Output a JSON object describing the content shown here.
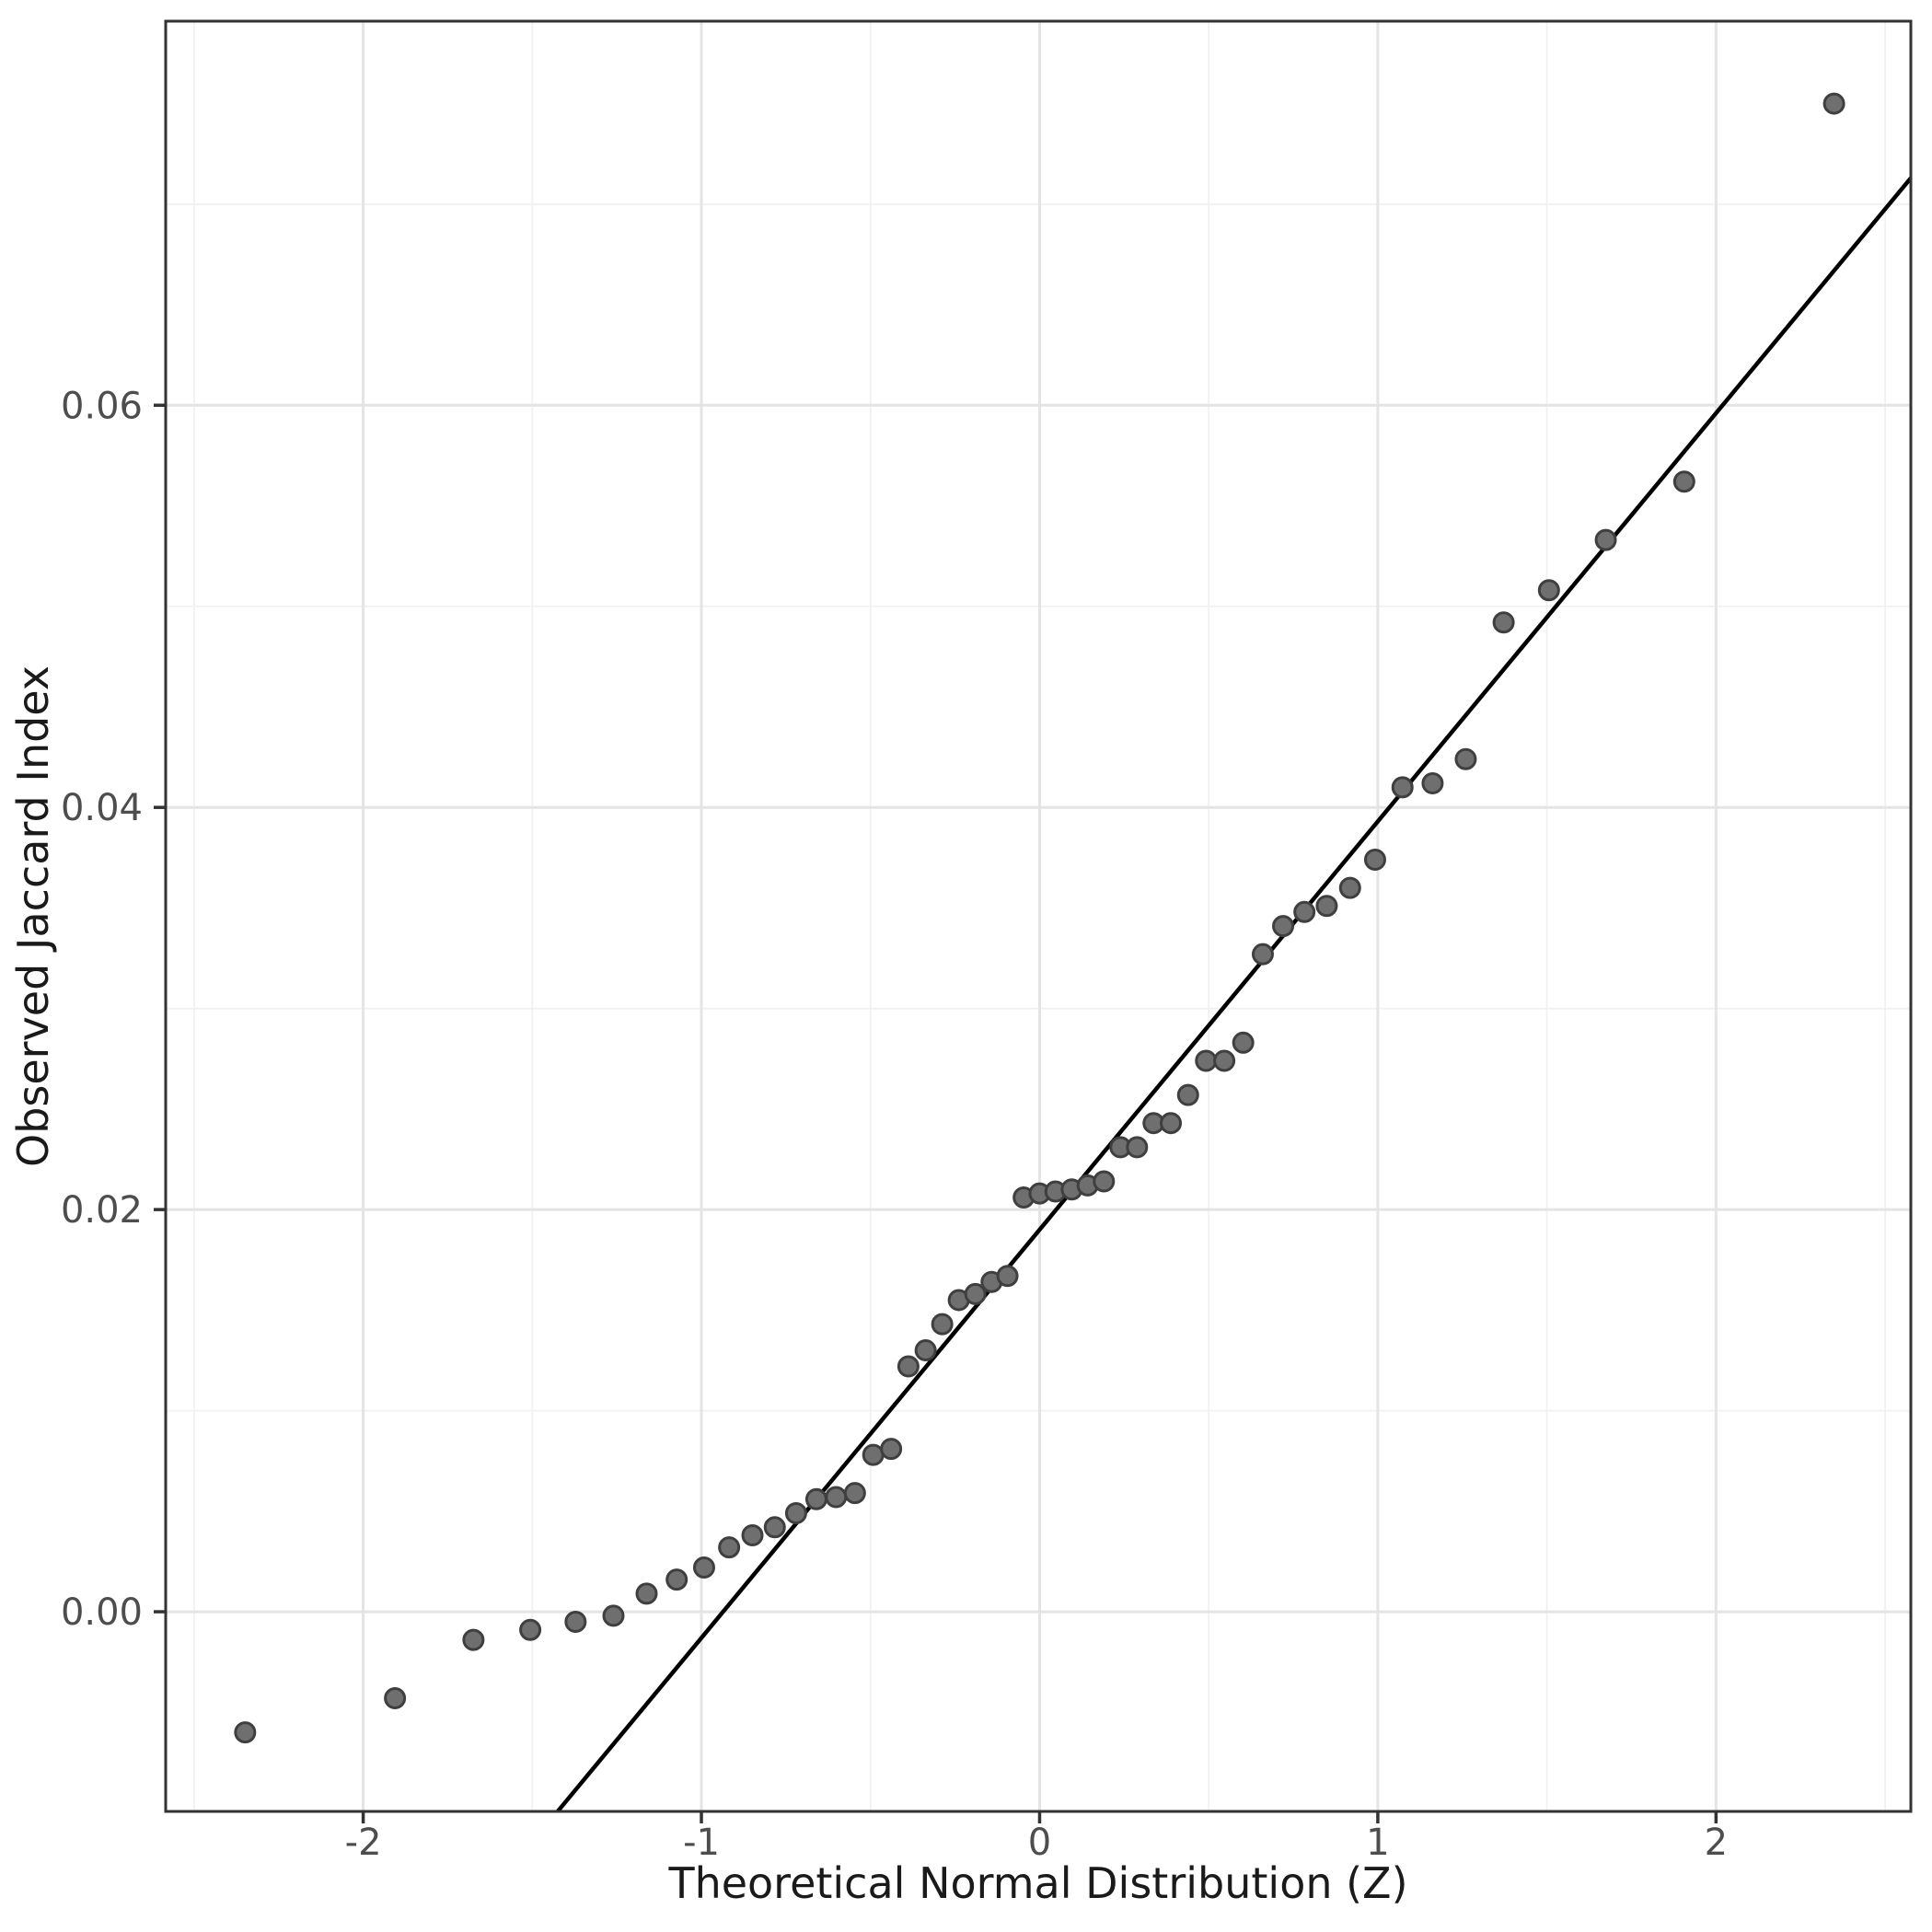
{
  "chart_data": {
    "type": "scatter",
    "title": "",
    "xlabel": "Theoretical Normal Distribution (Z)",
    "ylabel": "Observed Jaccard Index",
    "xlim": [
      -2.584,
      2.576
    ],
    "ylim": [
      -0.00993,
      0.0791
    ],
    "x_ticks": [
      -2,
      -1,
      0,
      1,
      2
    ],
    "x_tick_labels": [
      "-2",
      "-1",
      "0",
      "1",
      "2"
    ],
    "y_ticks": [
      0.0,
      0.02,
      0.04,
      0.06
    ],
    "y_tick_labels": [
      "0.00",
      "0.02",
      "0.04",
      "0.06"
    ],
    "x_minor_gridlines": [
      -2.5,
      -1.5,
      -0.5,
      0.5,
      1.5,
      2.5
    ],
    "y_minor_gridlines": [
      -0.01,
      0.01,
      0.03,
      0.05,
      0.07
    ],
    "grid": true,
    "legend": false,
    "series": [
      {
        "name": "sample-quantiles",
        "type": "scatter",
        "points": [
          [
            -2.349,
            -0.006
          ],
          [
            -1.906,
            -0.0043
          ],
          [
            -1.674,
            -0.0014
          ],
          [
            -1.506,
            -0.0009
          ],
          [
            -1.372,
            -0.0005
          ],
          [
            -1.26,
            -0.0002
          ],
          [
            -1.162,
            0.0009
          ],
          [
            -1.073,
            0.0016
          ],
          [
            -0.992,
            0.0022
          ],
          [
            -0.918,
            0.0032
          ],
          [
            -0.849,
            0.0038
          ],
          [
            -0.783,
            0.0042
          ],
          [
            -0.72,
            0.0049
          ],
          [
            -0.66,
            0.0056
          ],
          [
            -0.602,
            0.0057
          ],
          [
            -0.546,
            0.0059
          ],
          [
            -0.492,
            0.0078
          ],
          [
            -0.439,
            0.0081
          ],
          [
            -0.388,
            0.0122
          ],
          [
            -0.337,
            0.013
          ],
          [
            -0.288,
            0.0143
          ],
          [
            -0.239,
            0.0155
          ],
          [
            -0.19,
            0.0158
          ],
          [
            -0.142,
            0.0164
          ],
          [
            -0.095,
            0.0167
          ],
          [
            -0.047,
            0.0206
          ],
          [
            0.0,
            0.0208
          ],
          [
            0.047,
            0.0209
          ],
          [
            0.095,
            0.021
          ],
          [
            0.142,
            0.0212
          ],
          [
            0.19,
            0.0214
          ],
          [
            0.239,
            0.0231
          ],
          [
            0.288,
            0.0231
          ],
          [
            0.337,
            0.0243
          ],
          [
            0.388,
            0.0243
          ],
          [
            0.439,
            0.0257
          ],
          [
            0.492,
            0.0274
          ],
          [
            0.546,
            0.0274
          ],
          [
            0.602,
            0.0283
          ],
          [
            0.66,
            0.0327
          ],
          [
            0.72,
            0.0341
          ],
          [
            0.783,
            0.0348
          ],
          [
            0.849,
            0.0351
          ],
          [
            0.918,
            0.036
          ],
          [
            0.992,
            0.0374
          ],
          [
            1.073,
            0.041
          ],
          [
            1.162,
            0.0412
          ],
          [
            1.26,
            0.0424
          ],
          [
            1.372,
            0.0492
          ],
          [
            1.506,
            0.0508
          ],
          [
            1.674,
            0.0533
          ],
          [
            1.906,
            0.0562
          ],
          [
            2.349,
            0.075
          ]
        ]
      },
      {
        "name": "qq-reference-line",
        "type": "line",
        "slope": 0.0203,
        "intercept": 0.019,
        "x": [
          -1.425,
          2.576
        ],
        "y": [
          -0.00993,
          0.0713
        ]
      }
    ],
    "colors": {
      "background": "#ffffff",
      "panel_background": "#ffffff",
      "grid_major": "#e4e4e4",
      "grid_minor": "#f1f1f1",
      "panel_border": "#333333",
      "tick": "#333333",
      "tick_label": "#4d4d4d",
      "axis_title": "#1a1a1a",
      "point_fill": "#6f6f6f",
      "point_stroke": "#3f3f3f",
      "reference_line": "#000000"
    }
  }
}
